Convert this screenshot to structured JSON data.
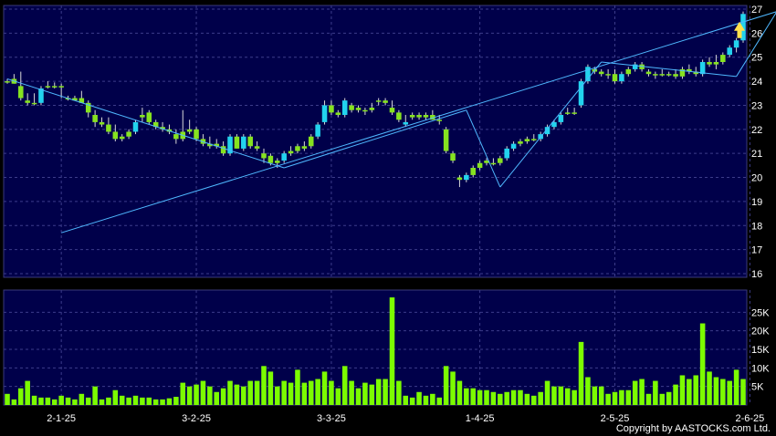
{
  "chart_data": {
    "type": "candlestick",
    "price_axis": {
      "min": 16,
      "max": 27,
      "ticks": [
        16,
        17,
        18,
        19,
        20,
        21,
        22,
        23,
        24,
        25,
        26,
        27
      ]
    },
    "volume_axis": {
      "min": 0,
      "max": 30000,
      "ticks": [
        5000,
        10000,
        15000,
        20000,
        25000
      ],
      "tick_labels": [
        "5K",
        "10K",
        "15K",
        "20K",
        "25K"
      ]
    },
    "date_labels": [
      {
        "label": "2-1-25",
        "index": 8
      },
      {
        "label": "3-2-25",
        "index": 28
      },
      {
        "label": "3-3-25",
        "index": 48
      },
      {
        "label": "1-4-25",
        "index": 70
      },
      {
        "label": "2-5-25",
        "index": 90
      },
      {
        "label": "2-6-25",
        "index": 110
      }
    ],
    "candles": [
      {
        "o": 24.0,
        "h": 24.1,
        "l": 23.9,
        "c": 23.95,
        "v": 3000,
        "up": false
      },
      {
        "o": 24.1,
        "h": 24.3,
        "l": 23.9,
        "c": 23.9,
        "v": 1500,
        "up": false
      },
      {
        "o": 23.8,
        "h": 24.4,
        "l": 23.2,
        "c": 23.3,
        "v": 4500,
        "up": false
      },
      {
        "o": 23.2,
        "h": 23.5,
        "l": 23.0,
        "c": 23.1,
        "v": 6500,
        "up": false
      },
      {
        "o": 23.1,
        "h": 23.5,
        "l": 23.0,
        "c": 23.1,
        "v": 2500,
        "up": false
      },
      {
        "o": 23.1,
        "h": 23.8,
        "l": 23.0,
        "c": 23.7,
        "v": 2000,
        "up": true
      },
      {
        "o": 23.8,
        "h": 24.0,
        "l": 23.7,
        "c": 23.8,
        "v": 2000,
        "up": false
      },
      {
        "o": 23.8,
        "h": 23.95,
        "l": 23.7,
        "c": 23.8,
        "v": 1500,
        "up": false
      },
      {
        "o": 23.8,
        "h": 23.9,
        "l": 23.3,
        "c": 23.8,
        "v": 2500,
        "up": false
      },
      {
        "o": 23.3,
        "h": 23.4,
        "l": 23.2,
        "c": 23.3,
        "v": 2000,
        "up": false
      },
      {
        "o": 23.3,
        "h": 23.4,
        "l": 23.2,
        "c": 23.2,
        "v": 1500,
        "up": false
      },
      {
        "o": 23.3,
        "h": 23.6,
        "l": 23.1,
        "c": 23.1,
        "v": 3000,
        "up": false
      },
      {
        "o": 23.1,
        "h": 23.2,
        "l": 22.5,
        "c": 22.7,
        "v": 2000,
        "up": false
      },
      {
        "o": 22.6,
        "h": 22.8,
        "l": 22.1,
        "c": 22.3,
        "v": 5000,
        "up": false
      },
      {
        "o": 22.3,
        "h": 22.5,
        "l": 22.1,
        "c": 22.2,
        "v": 1500,
        "up": false
      },
      {
        "o": 22.2,
        "h": 22.5,
        "l": 21.8,
        "c": 21.9,
        "v": 2000,
        "up": false
      },
      {
        "o": 21.9,
        "h": 22.2,
        "l": 21.5,
        "c": 21.6,
        "v": 4000,
        "up": false
      },
      {
        "o": 21.6,
        "h": 21.8,
        "l": 21.5,
        "c": 21.7,
        "v": 2500,
        "up": false
      },
      {
        "o": 21.7,
        "h": 22.0,
        "l": 21.6,
        "c": 21.9,
        "v": 2000,
        "up": false
      },
      {
        "o": 21.9,
        "h": 22.4,
        "l": 21.8,
        "c": 22.3,
        "v": 2500,
        "up": true
      },
      {
        "o": 22.5,
        "h": 22.9,
        "l": 22.3,
        "c": 22.6,
        "v": 2000,
        "up": false
      },
      {
        "o": 22.7,
        "h": 22.8,
        "l": 22.2,
        "c": 22.3,
        "v": 2000,
        "up": false
      },
      {
        "o": 22.3,
        "h": 22.4,
        "l": 22.0,
        "c": 22.1,
        "v": 1500,
        "up": false
      },
      {
        "o": 22.1,
        "h": 22.3,
        "l": 21.9,
        "c": 22.0,
        "v": 1500,
        "up": false
      },
      {
        "o": 22.0,
        "h": 22.2,
        "l": 21.8,
        "c": 21.9,
        "v": 1800,
        "up": false
      },
      {
        "o": 21.8,
        "h": 22.0,
        "l": 21.4,
        "c": 21.6,
        "v": 2200,
        "up": false
      },
      {
        "o": 21.6,
        "h": 22.8,
        "l": 21.5,
        "c": 21.9,
        "v": 6000,
        "up": false
      },
      {
        "o": 21.9,
        "h": 22.4,
        "l": 21.8,
        "c": 22.0,
        "v": 5000,
        "up": false
      },
      {
        "o": 22.0,
        "h": 22.1,
        "l": 21.5,
        "c": 21.6,
        "v": 5500,
        "up": false
      },
      {
        "o": 21.6,
        "h": 21.8,
        "l": 21.3,
        "c": 21.4,
        "v": 6500,
        "up": false
      },
      {
        "o": 21.4,
        "h": 21.7,
        "l": 21.2,
        "c": 21.3,
        "v": 5000,
        "up": false
      },
      {
        "o": 21.3,
        "h": 21.6,
        "l": 21.2,
        "c": 21.4,
        "v": 3500,
        "up": false
      },
      {
        "o": 21.3,
        "h": 21.5,
        "l": 20.9,
        "c": 21.0,
        "v": 4500,
        "up": false
      },
      {
        "o": 21.0,
        "h": 21.8,
        "l": 20.9,
        "c": 21.7,
        "v": 6500,
        "up": true
      },
      {
        "o": 21.7,
        "h": 21.8,
        "l": 21.2,
        "c": 21.2,
        "v": 5500,
        "up": false
      },
      {
        "o": 21.2,
        "h": 21.8,
        "l": 21.1,
        "c": 21.7,
        "v": 5000,
        "up": true
      },
      {
        "o": 21.7,
        "h": 21.8,
        "l": 21.2,
        "c": 21.3,
        "v": 6500,
        "up": false
      },
      {
        "o": 21.3,
        "h": 21.5,
        "l": 21.1,
        "c": 21.2,
        "v": 6500,
        "up": false
      },
      {
        "o": 21.0,
        "h": 21.2,
        "l": 20.6,
        "c": 20.8,
        "v": 10500,
        "up": false
      },
      {
        "o": 20.9,
        "h": 21.0,
        "l": 20.5,
        "c": 20.6,
        "v": 9000,
        "up": false
      },
      {
        "o": 20.6,
        "h": 20.8,
        "l": 20.4,
        "c": 20.7,
        "v": 5000,
        "up": false
      },
      {
        "o": 20.7,
        "h": 21.1,
        "l": 20.6,
        "c": 21.0,
        "v": 6500,
        "up": true
      },
      {
        "o": 21.0,
        "h": 21.3,
        "l": 20.9,
        "c": 21.1,
        "v": 6000,
        "up": false
      },
      {
        "o": 21.1,
        "h": 21.4,
        "l": 21.0,
        "c": 21.3,
        "v": 9500,
        "up": false
      },
      {
        "o": 21.3,
        "h": 21.5,
        "l": 21.1,
        "c": 21.2,
        "v": 6000,
        "up": false
      },
      {
        "o": 21.3,
        "h": 21.8,
        "l": 21.2,
        "c": 21.7,
        "v": 6500,
        "up": false
      },
      {
        "o": 21.7,
        "h": 22.3,
        "l": 21.6,
        "c": 22.2,
        "v": 7000,
        "up": true
      },
      {
        "o": 22.3,
        "h": 23.2,
        "l": 22.2,
        "c": 23.0,
        "v": 9000,
        "up": true
      },
      {
        "o": 23.0,
        "h": 23.2,
        "l": 22.6,
        "c": 22.7,
        "v": 6500,
        "up": false
      },
      {
        "o": 22.6,
        "h": 22.8,
        "l": 22.5,
        "c": 22.7,
        "v": 4500,
        "up": false
      },
      {
        "o": 22.6,
        "h": 23.3,
        "l": 22.5,
        "c": 23.2,
        "v": 10500,
        "up": true
      },
      {
        "o": 23.0,
        "h": 23.1,
        "l": 22.7,
        "c": 22.8,
        "v": 6500,
        "up": false
      },
      {
        "o": 22.9,
        "h": 23.0,
        "l": 22.7,
        "c": 22.8,
        "v": 4500,
        "up": false
      },
      {
        "o": 22.8,
        "h": 22.9,
        "l": 22.6,
        "c": 22.8,
        "v": 6000,
        "up": false
      },
      {
        "o": 22.8,
        "h": 23.1,
        "l": 22.7,
        "c": 22.9,
        "v": 5500,
        "up": false
      },
      {
        "o": 23.2,
        "h": 23.3,
        "l": 23.0,
        "c": 23.2,
        "v": 7000,
        "up": false
      },
      {
        "o": 23.2,
        "h": 23.3,
        "l": 23.0,
        "c": 23.1,
        "v": 7000,
        "up": false
      },
      {
        "o": 22.9,
        "h": 23.2,
        "l": 22.6,
        "c": 22.7,
        "v": 29000,
        "up": false
      },
      {
        "o": 22.7,
        "h": 22.8,
        "l": 22.3,
        "c": 22.4,
        "v": 6500,
        "up": false
      },
      {
        "o": 22.3,
        "h": 22.6,
        "l": 22.1,
        "c": 22.2,
        "v": 2500,
        "up": true
      },
      {
        "o": 22.5,
        "h": 22.7,
        "l": 22.4,
        "c": 22.6,
        "v": 2000,
        "up": false
      },
      {
        "o": 22.6,
        "h": 22.7,
        "l": 22.4,
        "c": 22.5,
        "v": 3500,
        "up": false
      },
      {
        "o": 22.5,
        "h": 22.7,
        "l": 22.4,
        "c": 22.6,
        "v": 2500,
        "up": false
      },
      {
        "o": 22.6,
        "h": 22.8,
        "l": 22.4,
        "c": 22.4,
        "v": 3000,
        "up": false
      },
      {
        "o": 22.4,
        "h": 22.6,
        "l": 22.2,
        "c": 22.4,
        "v": 2000,
        "up": false
      },
      {
        "o": 22.0,
        "h": 22.1,
        "l": 21.0,
        "c": 21.1,
        "v": 10500,
        "up": false
      },
      {
        "o": 21.0,
        "h": 21.1,
        "l": 20.6,
        "c": 20.7,
        "v": 9000,
        "up": false
      },
      {
        "o": 20.0,
        "h": 20.1,
        "l": 19.6,
        "c": 19.9,
        "v": 6500,
        "up": false
      },
      {
        "o": 19.9,
        "h": 20.2,
        "l": 19.8,
        "c": 20.1,
        "v": 4500,
        "up": true
      },
      {
        "o": 20.1,
        "h": 20.5,
        "l": 20.0,
        "c": 20.4,
        "v": 4500,
        "up": false
      },
      {
        "o": 20.4,
        "h": 20.7,
        "l": 20.3,
        "c": 20.6,
        "v": 4000,
        "up": false
      },
      {
        "o": 20.6,
        "h": 20.8,
        "l": 20.5,
        "c": 20.7,
        "v": 4000,
        "up": false
      },
      {
        "o": 20.6,
        "h": 20.8,
        "l": 20.5,
        "c": 20.6,
        "v": 3500,
        "up": false
      },
      {
        "o": 20.6,
        "h": 20.9,
        "l": 20.5,
        "c": 20.8,
        "v": 3000,
        "up": false
      },
      {
        "o": 20.8,
        "h": 21.3,
        "l": 20.7,
        "c": 21.2,
        "v": 3500,
        "up": true
      },
      {
        "o": 21.2,
        "h": 21.5,
        "l": 21.1,
        "c": 21.4,
        "v": 4000,
        "up": true
      },
      {
        "o": 21.4,
        "h": 21.6,
        "l": 21.3,
        "c": 21.5,
        "v": 4000,
        "up": false
      },
      {
        "o": 21.5,
        "h": 21.7,
        "l": 21.4,
        "c": 21.6,
        "v": 3000,
        "up": false
      },
      {
        "o": 21.6,
        "h": 21.8,
        "l": 21.5,
        "c": 21.6,
        "v": 2500,
        "up": false
      },
      {
        "o": 21.6,
        "h": 21.9,
        "l": 21.5,
        "c": 21.8,
        "v": 3500,
        "up": true
      },
      {
        "o": 21.8,
        "h": 22.2,
        "l": 21.7,
        "c": 22.1,
        "v": 6500,
        "up": true
      },
      {
        "o": 22.1,
        "h": 22.4,
        "l": 22.0,
        "c": 22.3,
        "v": 5000,
        "up": true
      },
      {
        "o": 22.3,
        "h": 22.7,
        "l": 22.2,
        "c": 22.6,
        "v": 5000,
        "up": true
      },
      {
        "o": 22.7,
        "h": 22.9,
        "l": 22.6,
        "c": 22.7,
        "v": 4500,
        "up": false
      },
      {
        "o": 22.7,
        "h": 22.9,
        "l": 22.6,
        "c": 22.7,
        "v": 4000,
        "up": false
      },
      {
        "o": 23.0,
        "h": 24.1,
        "l": 22.9,
        "c": 24.0,
        "v": 17000,
        "up": true
      },
      {
        "o": 24.0,
        "h": 24.7,
        "l": 23.9,
        "c": 24.6,
        "v": 7500,
        "up": true
      },
      {
        "o": 24.5,
        "h": 24.6,
        "l": 24.3,
        "c": 24.4,
        "v": 5000,
        "up": false
      },
      {
        "o": 24.3,
        "h": 24.5,
        "l": 24.2,
        "c": 24.4,
        "v": 5000,
        "up": false
      },
      {
        "o": 24.3,
        "h": 24.5,
        "l": 24.1,
        "c": 24.3,
        "v": 3000,
        "up": false
      },
      {
        "o": 24.3,
        "h": 24.5,
        "l": 23.9,
        "c": 24.0,
        "v": 3500,
        "up": false
      },
      {
        "o": 24.0,
        "h": 24.4,
        "l": 23.9,
        "c": 24.3,
        "v": 4000,
        "up": true
      },
      {
        "o": 24.3,
        "h": 24.6,
        "l": 24.2,
        "c": 24.5,
        "v": 4000,
        "up": false
      },
      {
        "o": 24.5,
        "h": 24.8,
        "l": 24.4,
        "c": 24.7,
        "v": 6500,
        "up": true
      },
      {
        "o": 24.7,
        "h": 24.8,
        "l": 24.4,
        "c": 24.5,
        "v": 7000,
        "up": false
      },
      {
        "o": 24.4,
        "h": 24.5,
        "l": 24.2,
        "c": 24.3,
        "v": 3000,
        "up": false
      },
      {
        "o": 24.3,
        "h": 24.4,
        "l": 24.1,
        "c": 24.3,
        "v": 6500,
        "up": false
      },
      {
        "o": 24.3,
        "h": 24.5,
        "l": 24.2,
        "c": 24.3,
        "v": 3000,
        "up": false
      },
      {
        "o": 24.3,
        "h": 24.4,
        "l": 24.2,
        "c": 24.3,
        "v": 3500,
        "up": false
      },
      {
        "o": 24.3,
        "h": 24.5,
        "l": 24.1,
        "c": 24.2,
        "v": 5500,
        "up": false
      },
      {
        "o": 24.2,
        "h": 24.6,
        "l": 24.1,
        "c": 24.5,
        "v": 8000,
        "up": false
      },
      {
        "o": 24.5,
        "h": 24.7,
        "l": 24.3,
        "c": 24.4,
        "v": 7000,
        "up": false
      },
      {
        "o": 24.4,
        "h": 24.6,
        "l": 24.2,
        "c": 24.3,
        "v": 8000,
        "up": false
      },
      {
        "o": 24.3,
        "h": 24.9,
        "l": 24.2,
        "c": 24.8,
        "v": 22000,
        "up": true
      },
      {
        "o": 24.8,
        "h": 25.0,
        "l": 24.6,
        "c": 24.7,
        "v": 9000,
        "up": false
      },
      {
        "o": 24.7,
        "h": 25.1,
        "l": 24.5,
        "c": 24.8,
        "v": 7500,
        "up": false
      },
      {
        "o": 24.8,
        "h": 25.2,
        "l": 24.7,
        "c": 25.1,
        "v": 7000,
        "up": false
      },
      {
        "o": 25.1,
        "h": 25.5,
        "l": 25.0,
        "c": 25.4,
        "v": 6500,
        "up": true
      },
      {
        "o": 25.4,
        "h": 25.8,
        "l": 25.2,
        "c": 25.7,
        "v": 9500,
        "up": true
      },
      {
        "o": 25.7,
        "h": 26.9,
        "l": 25.6,
        "c": 26.8,
        "v": 7000,
        "up": true
      }
    ],
    "trend_lines": [
      {
        "x": [
          8,
          114
        ],
        "y": [
          17.7,
          26.9
        ]
      },
      {
        "x": [
          0,
          41
        ],
        "y": [
          24.1,
          20.4
        ]
      },
      {
        "x": [
          41,
          68
        ],
        "y": [
          20.4,
          22.8
        ]
      },
      {
        "x": [
          68,
          73
        ],
        "y": [
          22.8,
          19.6
        ]
      },
      {
        "x": [
          73,
          88
        ],
        "y": [
          19.6,
          24.8
        ]
      },
      {
        "x": [
          88,
          108
        ],
        "y": [
          24.8,
          24.2
        ]
      },
      {
        "x": [
          108,
          114
        ],
        "y": [
          24.2,
          26.9
        ]
      }
    ]
  },
  "copyright": "Copyright by AASTOCKS.com Ltd."
}
